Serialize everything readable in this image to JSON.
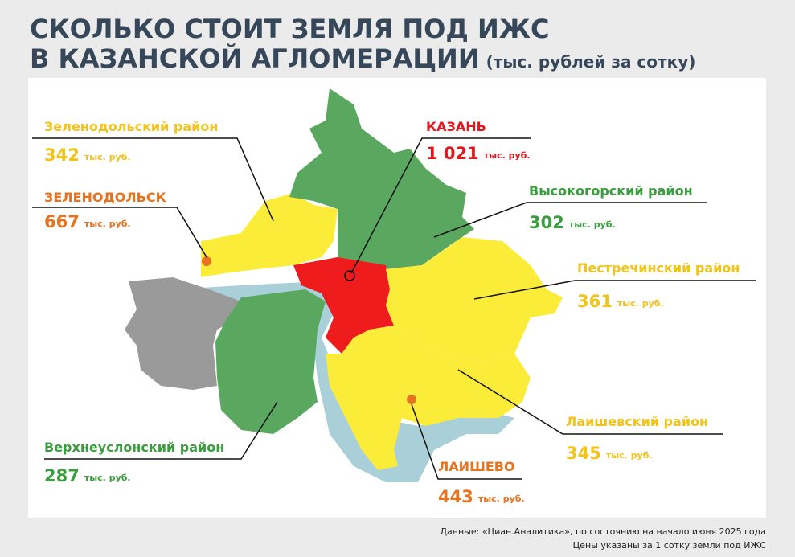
{
  "header": {
    "title_line1": "СКОЛЬКО СТОИТ ЗЕМЛЯ ПОД ИЖС",
    "title_line2": "В КАЗАНСКОЙ АГЛОМЕРАЦИИ",
    "subtitle": "(тыс. рублей за сотку)"
  },
  "regions": [
    {
      "name": "Зеленодольский район",
      "value": "342",
      "unit": "тыс. руб."
    },
    {
      "name": "ЗЕЛЕНОДОЛЬСК",
      "value": "667",
      "unit": "тыс. руб."
    },
    {
      "name": "КАЗАНЬ",
      "value": "1 021",
      "unit": "тыс. руб."
    },
    {
      "name": "Высокогорский район",
      "value": "302",
      "unit": "тыс. руб."
    },
    {
      "name": "Пестречинский район",
      "value": "361",
      "unit": "тыс. руб."
    },
    {
      "name": "Лаишевский район",
      "value": "345",
      "unit": "тыс. руб."
    },
    {
      "name": "Верхнеуслонский район",
      "value": "287",
      "unit": "тыс. руб."
    },
    {
      "name": "ЛАИШЕВО",
      "value": "443",
      "unit": "тыс. руб."
    }
  ],
  "footer": {
    "source": "Данные: «Циан.Аналитика», по состоянию на начало июня 2025 года",
    "note": "Цены указаны за 1 сотку земли под ИЖС"
  }
}
